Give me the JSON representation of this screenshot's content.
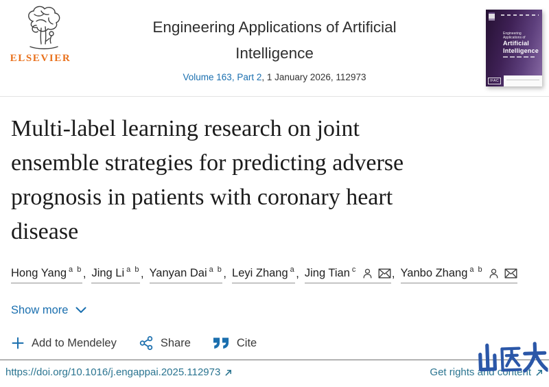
{
  "header": {
    "publisher_wordmark": "ELSEVIER",
    "journal_title_line1": "Engineering Applications of Artificial",
    "journal_title_line2": "Intelligence",
    "volume_link": "Volume 163, Part 2",
    "issue_info": ", 1 January 2026, 112973",
    "cover": {
      "small_title": "Engineering Applications of",
      "big_title_line1": "Artificial",
      "big_title_line2": "Intelligence",
      "badge": "IFAC"
    }
  },
  "article": {
    "title": "Multi-label learning research on joint ensemble strategies for predicting adverse prognosis in patients with coronary heart disease",
    "title_lines": [
      "Multi-label learning research on joint",
      "ensemble strategies for predicting adverse",
      "prognosis in patients with coronary heart",
      "disease"
    ],
    "author_separator": ", ",
    "authors": [
      {
        "name": "Hong Yang",
        "sup": "a b",
        "person": false,
        "email": false
      },
      {
        "name": "Jing Li",
        "sup": "a b",
        "person": false,
        "email": false
      },
      {
        "name": "Yanyan Dai",
        "sup": "a b",
        "person": false,
        "email": false
      },
      {
        "name": "Leyi Zhang",
        "sup": "a",
        "person": false,
        "email": false
      },
      {
        "name": "Jing Tian",
        "sup": "c",
        "person": true,
        "email": true
      },
      {
        "name": "Yanbo Zhang",
        "sup": "a b",
        "person": true,
        "email": true
      }
    ],
    "show_more_label": "Show more"
  },
  "actions": {
    "mendeley_label": "Add to Mendeley",
    "share_label": "Share",
    "cite_label": "Cite"
  },
  "footer": {
    "doi_link": "https://doi.org/10.1016/j.engappai.2025.112973",
    "rights_link": "Get rights and content",
    "watermark_text": "山医大"
  },
  "colors": {
    "link_blue": "#1a6faf",
    "icon_blue": "#1b6fae",
    "footer_teal": "#2a7490",
    "elsevier_orange": "#e9711c",
    "cover_purple": "#3f2156",
    "watermark_blue": "#2b57a8"
  }
}
